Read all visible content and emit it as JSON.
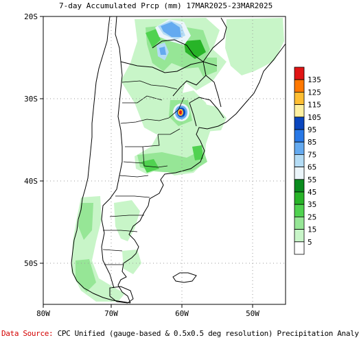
{
  "title": "7-day Accumulated Prcp (mm) 17MAR2025-23MAR2025",
  "map": {
    "lat_labels": [
      "20S",
      "30S",
      "40S",
      "50S"
    ],
    "lon_labels": [
      "80W",
      "70W",
      "60W",
      "50W"
    ]
  },
  "legend": {
    "items": [
      {
        "value": "135",
        "color": "#e01414"
      },
      {
        "value": "125",
        "color": "#ff7800"
      },
      {
        "value": "115",
        "color": "#ffbe32"
      },
      {
        "value": "105",
        "color": "#fff0a0"
      },
      {
        "value": "95",
        "color": "#0a46be"
      },
      {
        "value": "85",
        "color": "#2878e6"
      },
      {
        "value": "75",
        "color": "#64aaf0"
      },
      {
        "value": "65",
        "color": "#b4dcf5"
      },
      {
        "value": "55",
        "color": "#ebf5fa"
      },
      {
        "value": "45",
        "color": "#0a8c1e"
      },
      {
        "value": "35",
        "color": "#28b428"
      },
      {
        "value": "25",
        "color": "#50d250"
      },
      {
        "value": "15",
        "color": "#96e696"
      },
      {
        "value": "5",
        "color": "#c8f5c8"
      },
      {
        "value": "",
        "color": "#ffffff"
      }
    ]
  },
  "footer": {
    "source_label": "Data Source:",
    "source_text": "CPC Unified (gauge-based & 0.5x0.5 deg resolution) Precipitation Analysis"
  },
  "colors": {
    "land_line": "#000000",
    "grid": "#9a9a9a"
  }
}
